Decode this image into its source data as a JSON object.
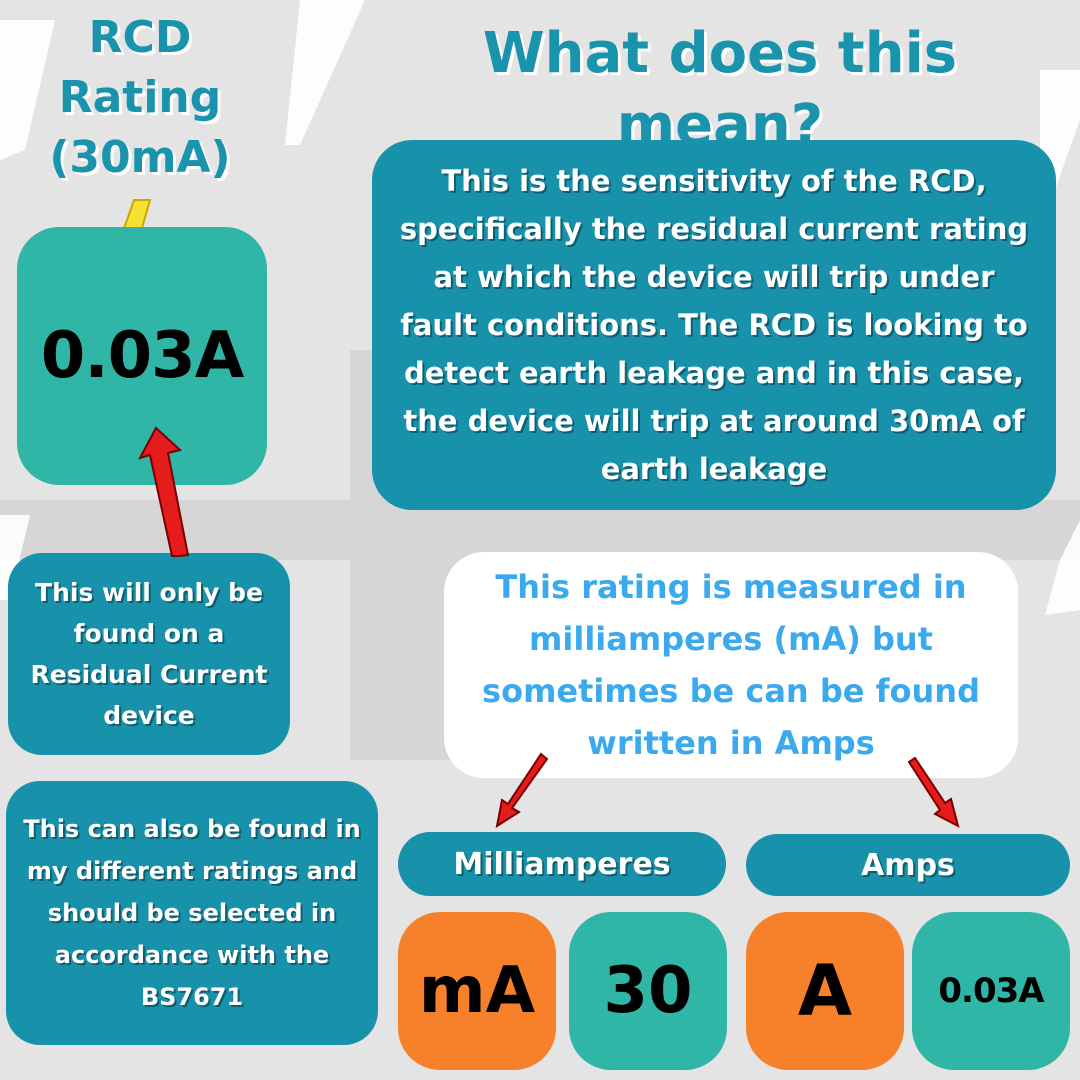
{
  "title": "What does this mean?",
  "rcd_heading": {
    "line1": "RCD",
    "line2": "Rating",
    "line3": "(30mA)"
  },
  "main_value": "0.03A",
  "explanation": "This is the sensitivity of the RCD, specifically the residual current rating at which the device will trip under fault conditions. The RCD is looking to detect earth leakage and in this case, the device will trip at around 30mA of earth leakage",
  "rcd_note": "This will only be found on a Residual Current device",
  "ratings_note": "This can also be found in my different ratings and should be selected in accordance with the BS7671",
  "measurement_note": "This rating is measured in milliamperes (mA) but sometimes be can be found written in Amps",
  "units": {
    "milliamperes_label": "Milliamperes",
    "amps_label": "Amps",
    "ma_symbol": "mA",
    "ma_value": "30",
    "a_symbol": "A",
    "a_value": "0.03A"
  },
  "colors": {
    "teal": "#1891ab",
    "green": "#2fb6a6",
    "orange": "#f7812b",
    "light_blue_text": "#3ba9ee",
    "arrow_red": "#e51c1c",
    "lightning_yellow": "#f5e033",
    "background": "#e4e4e4"
  },
  "icons": [
    "lightning-icon",
    "arrow-icon"
  ]
}
